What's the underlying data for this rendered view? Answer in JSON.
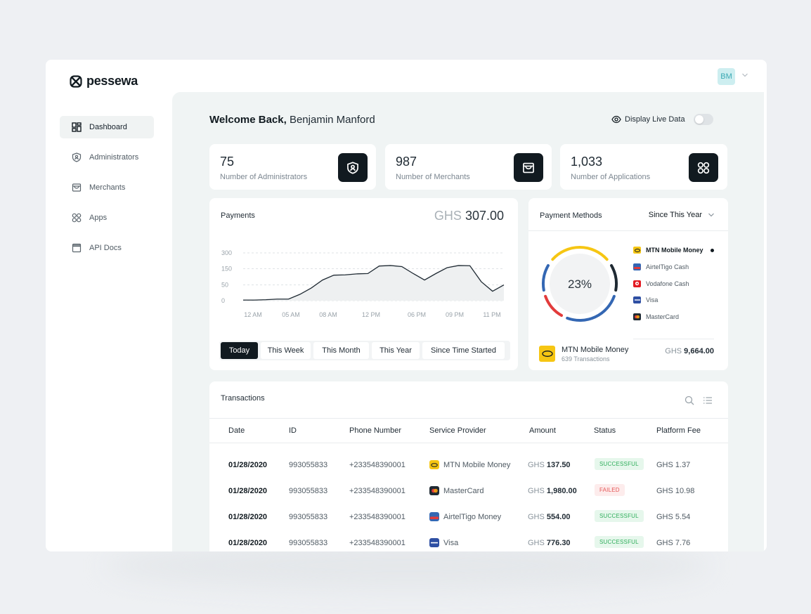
{
  "brand": {
    "name": "pessewa"
  },
  "user": {
    "initials": "BM"
  },
  "sidebar": {
    "items": [
      {
        "label": "Dashboard",
        "icon": "dashboard-icon",
        "active": true
      },
      {
        "label": "Administrators",
        "icon": "shield-user-icon",
        "active": false
      },
      {
        "label": "Merchants",
        "icon": "store-icon",
        "active": false
      },
      {
        "label": "Apps",
        "icon": "apps-grid-icon",
        "active": false
      },
      {
        "label": "API Docs",
        "icon": "docs-icon",
        "active": false
      }
    ]
  },
  "header": {
    "welcome_prefix": "Welcome Back,",
    "user_name": "Benjamin Manford",
    "live_label": "Display Live Data"
  },
  "stats": [
    {
      "value": "75",
      "label": "Number of Administrators",
      "icon": "shield-user-icon"
    },
    {
      "value": "987",
      "label": "Number of Merchants",
      "icon": "store-icon"
    },
    {
      "value": "1,033",
      "label": "Number of Applications",
      "icon": "apps-grid-icon"
    }
  ],
  "payments": {
    "title": "Payments",
    "currency": "GHS",
    "amount": "307.00",
    "ranges": [
      "Today",
      "This Week",
      "This Month",
      "This Year",
      "Since Time Started"
    ],
    "active_range": "Today"
  },
  "chart_data": {
    "type": "area",
    "title": "",
    "xlabel": "",
    "ylabel": "",
    "y_ticks": [
      0,
      50,
      150,
      300
    ],
    "x_tick_labels": [
      "12 AM",
      "05 AM",
      "08 AM",
      "12 PM",
      "06 PM",
      "09 PM",
      "11 PM"
    ],
    "ylim": [
      0,
      300
    ],
    "grid": true,
    "line_color": "#1f2a33",
    "fill_color": "#eef0f1",
    "values": [
      2,
      2,
      3,
      5,
      5,
      20,
      40,
      80,
      110,
      112,
      118,
      120,
      175,
      180,
      170,
      120,
      80,
      120,
      160,
      180,
      178,
      70,
      30,
      50
    ]
  },
  "payment_methods": {
    "title": "Payment Methods",
    "period": "Since This Year",
    "center_percent": "23%",
    "ring_colors": [
      "#f6c613",
      "#1f2a33",
      "#3467b3",
      "#e23b3b"
    ],
    "legend": [
      {
        "name": "MTN Mobile Money",
        "color": "#f6c613",
        "selected": true
      },
      {
        "name": "AirtelTigo Cash",
        "color": "#3467b3",
        "selected": false
      },
      {
        "name": "Vodafone Cash",
        "color": "#e31b23",
        "selected": false
      },
      {
        "name": "Visa",
        "color": "#2e4fa3",
        "selected": false
      },
      {
        "name": "MasterCard",
        "color": "#1f2a33",
        "selected": false
      }
    ],
    "selected": {
      "name": "MTN Mobile Money",
      "transactions": "639 Transactions",
      "currency": "GHS",
      "amount": "9,664.00"
    }
  },
  "transactions": {
    "title": "Transactions",
    "columns": [
      "Date",
      "ID",
      "Phone Number",
      "Service Provider",
      "Amount",
      "Status",
      "Platform Fee"
    ],
    "rows": [
      {
        "date": "01/28/2020",
        "id": "993055833",
        "phone": "+233548390001",
        "provider": "MTN Mobile Money",
        "provider_color": "#f6c613",
        "currency": "GHS",
        "amount": "137.50",
        "status": "SUCCESSFUL",
        "status_type": "ok",
        "fee": "GHS 1.37"
      },
      {
        "date": "01/28/2020",
        "id": "993055833",
        "phone": "+233548390001",
        "provider": "MasterCard",
        "provider_color": "#1f2a33",
        "currency": "GHS",
        "amount": "1,980.00",
        "status": "FAILED",
        "status_type": "fail",
        "fee": "GHS 10.98"
      },
      {
        "date": "01/28/2020",
        "id": "993055833",
        "phone": "+233548390001",
        "provider": "AirtelTigo Money",
        "provider_color": "#3467b3",
        "currency": "GHS",
        "amount": "554.00",
        "status": "SUCCESSFUL",
        "status_type": "ok",
        "fee": "GHS 5.54"
      },
      {
        "date": "01/28/2020",
        "id": "993055833",
        "phone": "+233548390001",
        "provider": "Visa",
        "provider_color": "#2e4fa3",
        "currency": "GHS",
        "amount": "776.30",
        "status": "SUCCESSFUL",
        "status_type": "ok",
        "fee": "GHS 7.76"
      }
    ]
  }
}
